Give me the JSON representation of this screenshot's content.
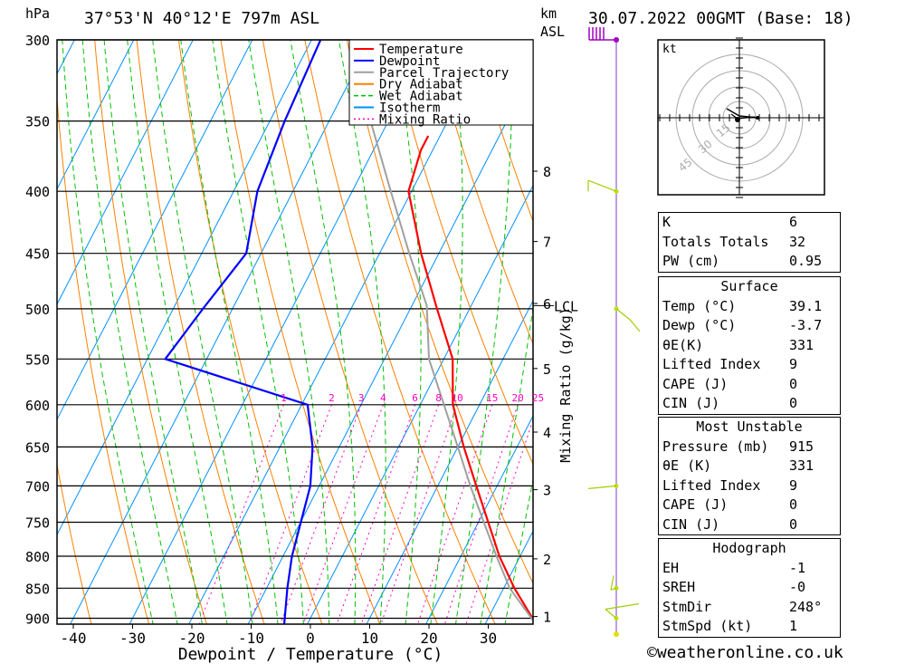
{
  "header": {
    "hpa_unit": "hPa",
    "location": "37°53'N  40°12'E  797m  ASL",
    "km_unit": "km",
    "asl_unit": "ASL",
    "datetime": "30.07.2022  00GMT  (Base: 18)"
  },
  "chart_data": {
    "type": "skew-t log-p",
    "xlabel": "Dewpoint / Temperature (°C)",
    "mixing_ratio_label": "Mixing Ratio (g/kg)",
    "pressure_levels": [
      300,
      350,
      400,
      450,
      500,
      550,
      600,
      650,
      700,
      750,
      800,
      850,
      900
    ],
    "temperature_ticks": [
      -40,
      -30,
      -20,
      -10,
      0,
      10,
      20,
      30
    ],
    "km_ticks": [
      1,
      2,
      3,
      4,
      5,
      6,
      7,
      8
    ],
    "km_pressures": [
      897,
      804,
      705,
      632,
      560,
      495,
      440,
      385
    ],
    "lcl_label": "LCL",
    "lcl_pressure": 497,
    "mixing_ratio_values": [
      1,
      2,
      3,
      4,
      6,
      8,
      10,
      15,
      20,
      25
    ],
    "legend": [
      {
        "name": "Temperature",
        "color": "#ff0000",
        "style": "solid"
      },
      {
        "name": "Dewpoint",
        "color": "#0000ff",
        "style": "solid"
      },
      {
        "name": "Parcel Trajectory",
        "color": "#a0a0a0",
        "style": "solid"
      },
      {
        "name": "Dry Adiabat",
        "color": "#ff8000",
        "style": "solid"
      },
      {
        "name": "Wet Adiabat",
        "color": "#00c000",
        "style": "dashed"
      },
      {
        "name": "Isotherm",
        "color": "#0090ff",
        "style": "solid"
      },
      {
        "name": "Mixing Ratio",
        "color": "#ff00c0",
        "style": "dotted"
      }
    ],
    "series": [
      {
        "name": "Temperature",
        "points": [
          [
            915,
            39.1
          ],
          [
            850,
            31.8
          ],
          [
            800,
            26.5
          ],
          [
            700,
            16.5
          ],
          [
            650,
            11.0
          ],
          [
            600,
            5.5
          ],
          [
            550,
            1.5
          ],
          [
            500,
            -5.5
          ],
          [
            450,
            -13.0
          ],
          [
            400,
            -20.5
          ],
          [
            370,
            -22.0
          ],
          [
            360,
            -22.0
          ]
        ]
      },
      {
        "name": "Dewpoint",
        "points": [
          [
            915,
            -3.7
          ],
          [
            850,
            -6.5
          ],
          [
            800,
            -8.5
          ],
          [
            700,
            -11.5
          ],
          [
            650,
            -14.5
          ],
          [
            600,
            -19.0
          ],
          [
            550,
            -47.0
          ],
          [
            500,
            -45.0
          ],
          [
            450,
            -42.5
          ],
          [
            400,
            -46.0
          ],
          [
            350,
            -47.5
          ],
          [
            300,
            -48.5
          ]
        ]
      },
      {
        "name": "Parcel Trajectory",
        "points": [
          [
            915,
            39.1
          ],
          [
            850,
            31.0
          ],
          [
            800,
            26.0
          ],
          [
            700,
            15.5
          ],
          [
            650,
            10.0
          ],
          [
            600,
            4.0
          ],
          [
            550,
            -2.5
          ],
          [
            497,
            -7.5
          ],
          [
            450,
            -15.0
          ],
          [
            400,
            -23.5
          ],
          [
            350,
            -33.0
          ],
          [
            300,
            -43.5
          ]
        ]
      }
    ],
    "wind_barbs_pressures": [
      300,
      400,
      500,
      700,
      850,
      900,
      915
    ]
  },
  "hodograph": {
    "unit": "kt",
    "ring_labels": [
      "15",
      "30",
      "45"
    ]
  },
  "indices": [
    {
      "key": "K",
      "value": "6"
    },
    {
      "key": "Totals Totals",
      "value": "32"
    },
    {
      "key": "PW (cm)",
      "value": "0.95"
    }
  ],
  "surface": {
    "title": "Surface",
    "rows": [
      {
        "key": "Temp (°C)",
        "value": "39.1"
      },
      {
        "key": "Dewp (°C)",
        "value": "-3.7"
      },
      {
        "key": "θE(K)",
        "value": "331"
      },
      {
        "key": "Lifted Index",
        "value": "9"
      },
      {
        "key": "CAPE (J)",
        "value": "0"
      },
      {
        "key": "CIN (J)",
        "value": "0"
      }
    ]
  },
  "most_unstable": {
    "title": "Most Unstable",
    "rows": [
      {
        "key": "Pressure (mb)",
        "value": "915"
      },
      {
        "key": "θE (K)",
        "value": "331"
      },
      {
        "key": "Lifted Index",
        "value": "9"
      },
      {
        "key": "CAPE (J)",
        "value": "0"
      },
      {
        "key": "CIN (J)",
        "value": "0"
      }
    ]
  },
  "hodograph_table": {
    "title": "Hodograph",
    "rows": [
      {
        "key": "EH",
        "value": "-1"
      },
      {
        "key": "SREH",
        "value": "-0"
      },
      {
        "key": "StmDir",
        "value": "248°"
      },
      {
        "key": "StmSpd (kt)",
        "value": "1"
      }
    ]
  },
  "footer": {
    "copyright": "©weatheronline.co.uk"
  }
}
